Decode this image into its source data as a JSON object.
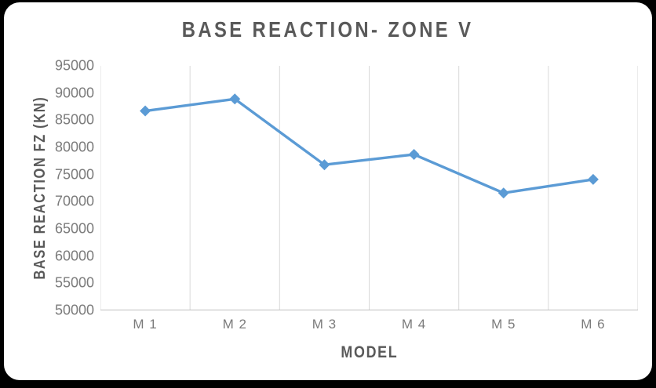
{
  "chart_data": {
    "type": "line",
    "title": "BASE REACTION- ZONE V",
    "xlabel": "MODEL",
    "ylabel": "BASE REACTION FZ (KN)",
    "categories": [
      "M 1",
      "M 2",
      "M 3",
      "M 4",
      "M 5",
      "M 6"
    ],
    "values": [
      86700,
      88900,
      76800,
      78700,
      71600,
      74100
    ],
    "ylim": [
      50000,
      95000
    ],
    "yticks": [
      95000,
      90000,
      85000,
      80000,
      75000,
      70000,
      65000,
      60000,
      55000,
      50000
    ],
    "ytick_step": 5000,
    "grid": "vertical-only",
    "legend": "none",
    "marker": "diamond",
    "colors": {
      "line": "#5B9BD5",
      "gridline": "#D9D9D9",
      "axis_line": "#BFBFBF",
      "title_text": "#595959",
      "tick_text": "#7B7B7B",
      "panel_background": "#FFFFFF",
      "outer_background": "#000000"
    }
  }
}
